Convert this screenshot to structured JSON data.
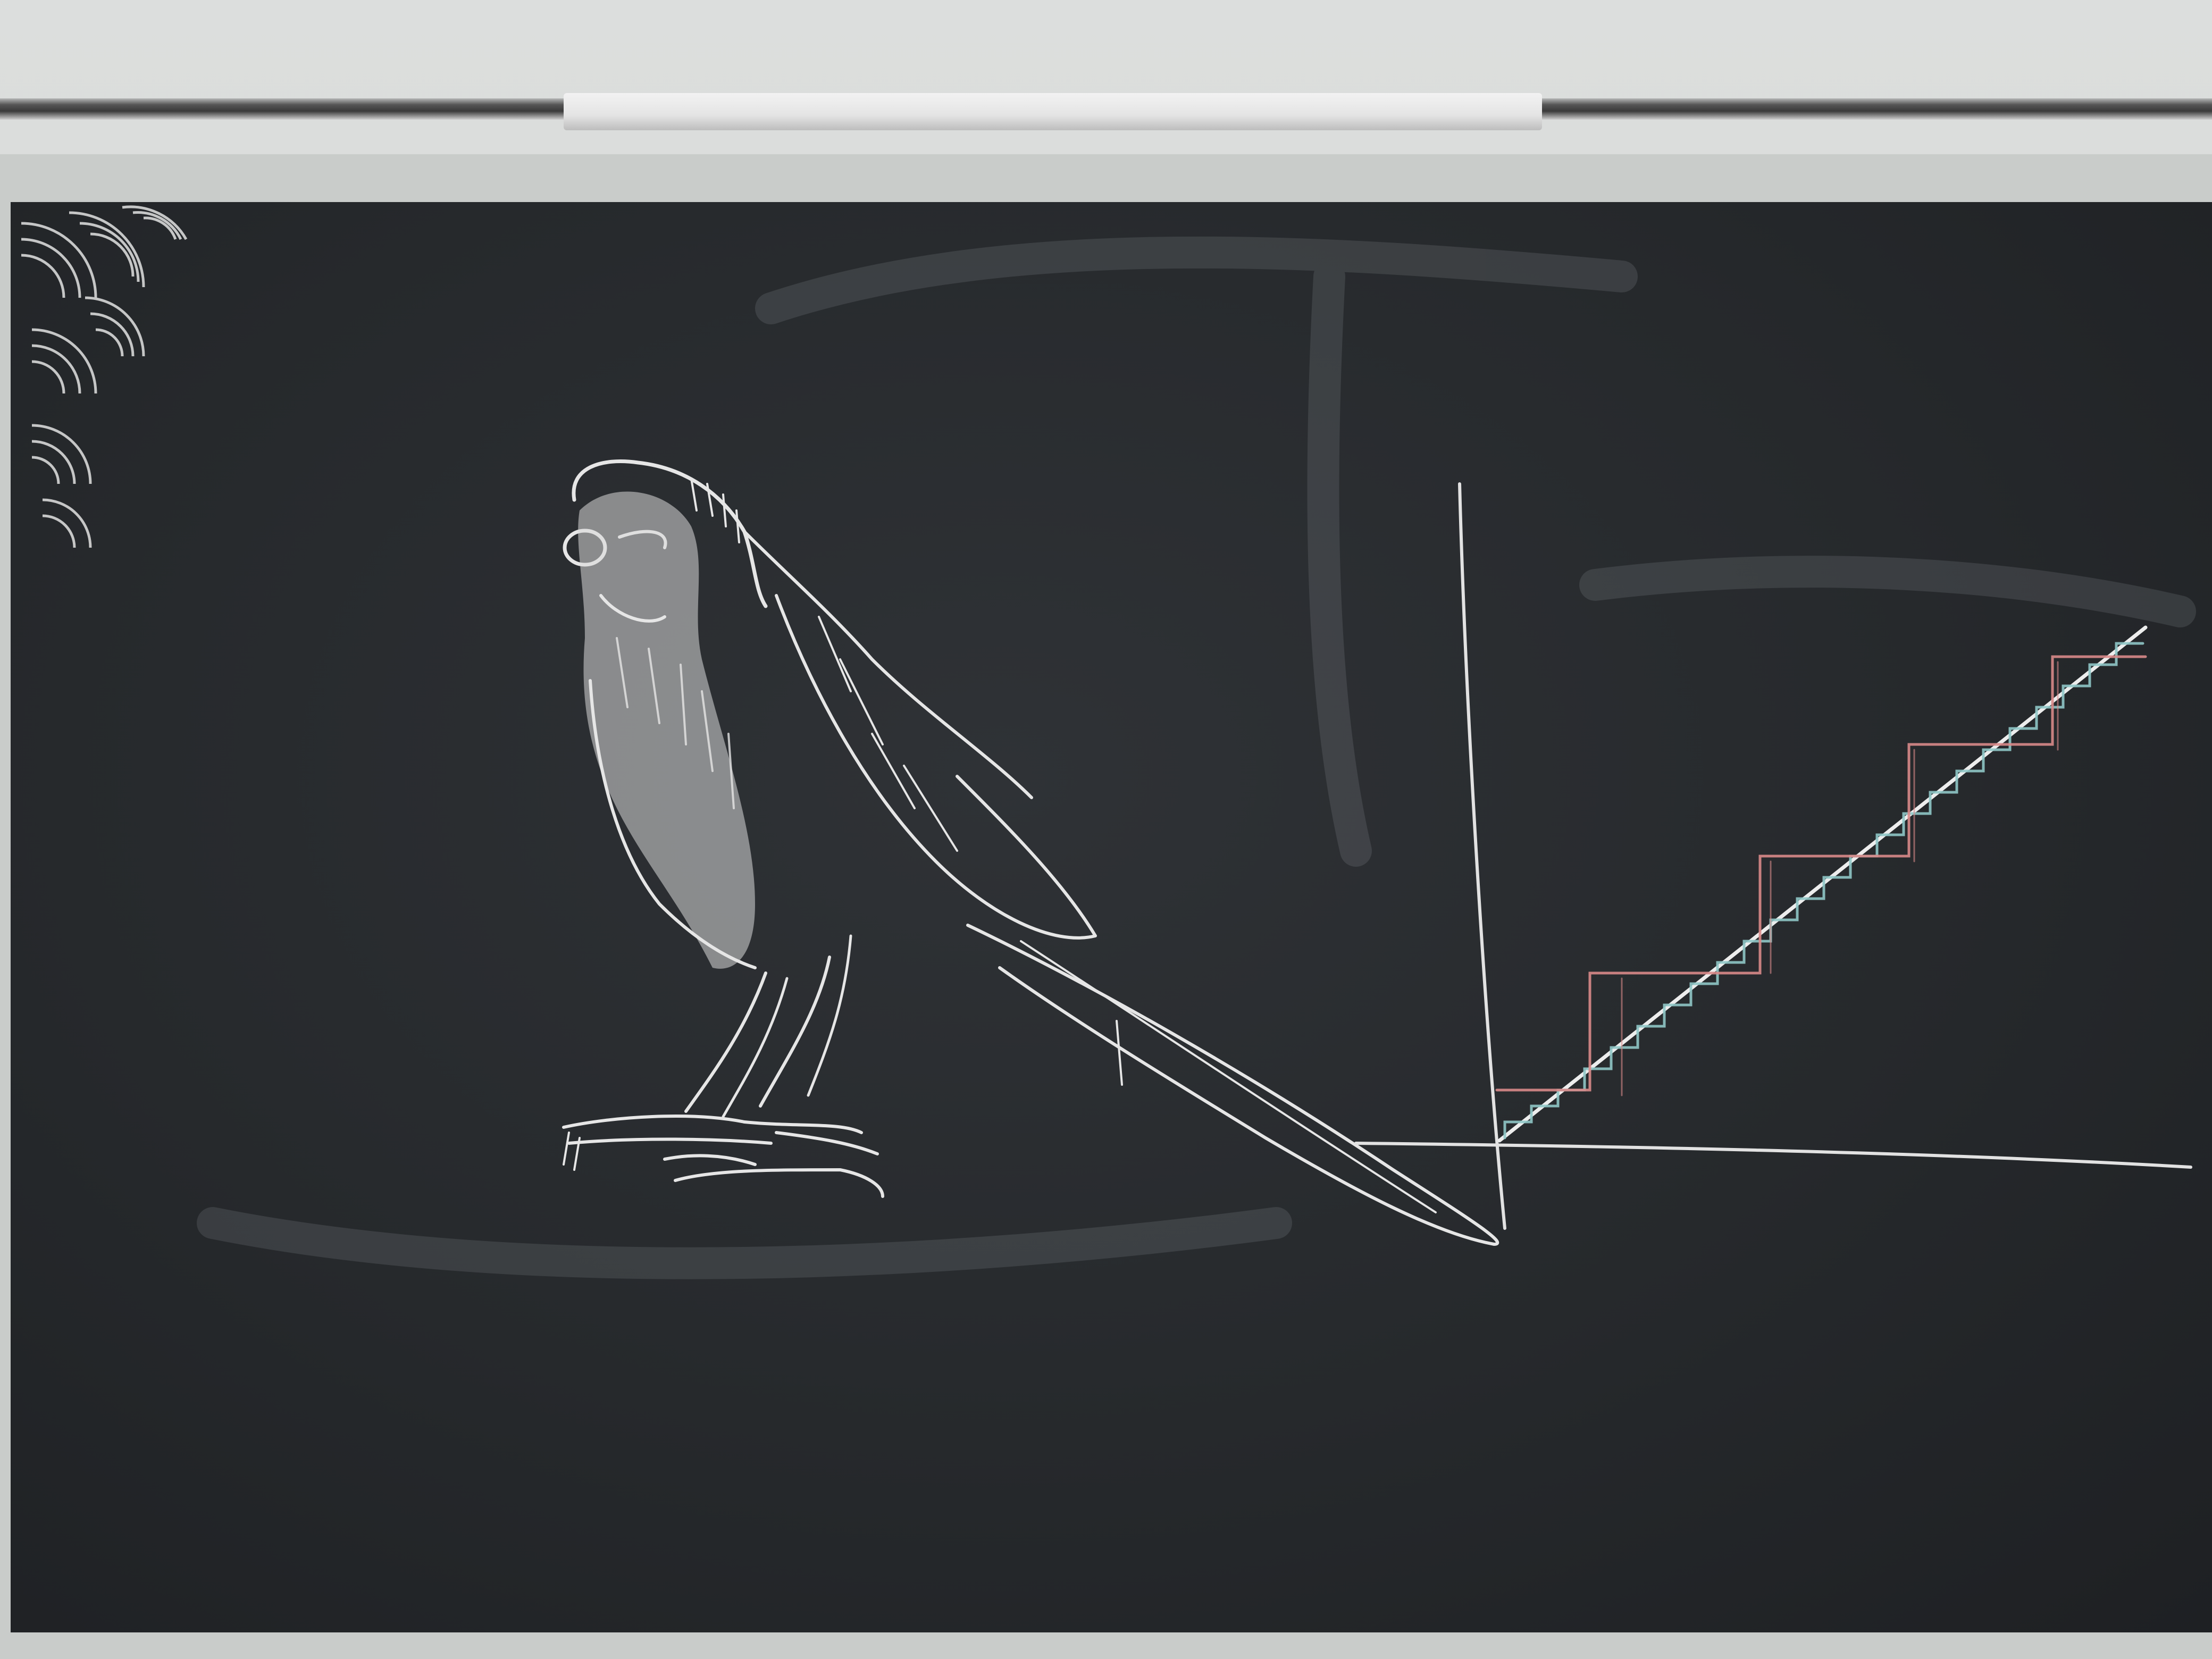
{
  "scene": {
    "subject": "chalkboard-drawing",
    "colors": {
      "wall": "#d9dbd9",
      "board": "#26292c",
      "chalk_white": "#e8e8e8",
      "chalk_pink": "#d98a8a",
      "chalk_teal": "#8fc7c7"
    }
  },
  "elements": {
    "bird": "budgerigar-sketch",
    "corner_doodle": "overlapping-arcs",
    "graph": "staircase-step-function"
  }
}
